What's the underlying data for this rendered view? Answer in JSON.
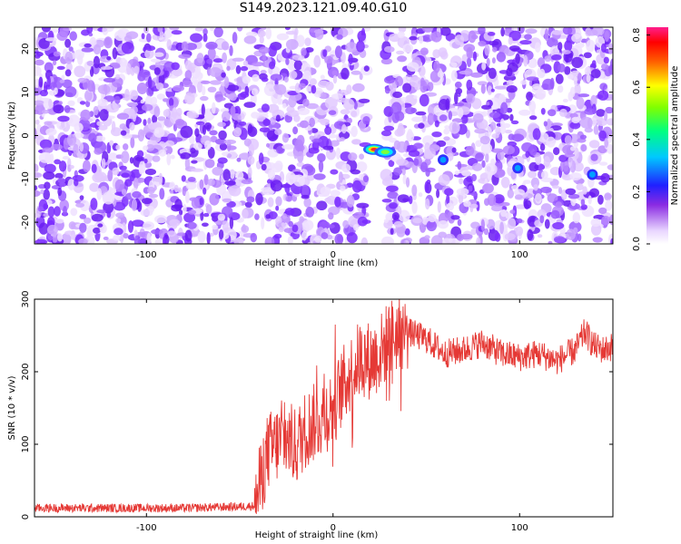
{
  "title": "S149.2023.121.09.40.G10",
  "chart_data": [
    {
      "type": "heatmap",
      "title": "S149.2023.121.09.40.G10",
      "xlabel": "Height of straight line (km)",
      "ylabel": "Frequency (Hz)",
      "xlim": [
        -160,
        150
      ],
      "ylim": [
        -25,
        25
      ],
      "x_ticks": [
        "-100",
        "0",
        "100"
      ],
      "x_tick_values": [
        -100,
        0,
        100
      ],
      "y_ticks": [
        "-20",
        "-10",
        "0",
        "10",
        "20"
      ],
      "y_tick_values": [
        -20,
        -10,
        0,
        10,
        20
      ],
      "gap_range_km": [
        18,
        28
      ],
      "peaks": [
        {
          "x": 22,
          "y": -3.2,
          "value": 0.82
        },
        {
          "x": 28,
          "y": -3.8,
          "value": 0.45
        },
        {
          "x": 59,
          "y": -5.6,
          "value": 0.22
        },
        {
          "x": 99,
          "y": -7.5,
          "value": 0.2
        },
        {
          "x": 139,
          "y": -9,
          "value": 0.14
        }
      ],
      "colorbar": {
        "label": "Normalized spectral amplitude",
        "range": [
          0,
          0.83
        ],
        "ticks": [
          "0.0",
          "0.2",
          "0.4",
          "0.6",
          "0.8"
        ],
        "tick_values": [
          0,
          0.2,
          0.4,
          0.6,
          0.8
        ]
      },
      "grid": false
    },
    {
      "type": "line",
      "xlabel": "Height of straight line (km)",
      "ylabel": "SNR (10 * v/v)",
      "xlim": [
        -160,
        150
      ],
      "ylim": [
        0,
        300
      ],
      "x_ticks": [
        "-100",
        "0",
        "100"
      ],
      "x_tick_values": [
        -100,
        0,
        100
      ],
      "y_ticks": [
        "0",
        "100",
        "200",
        "300"
      ],
      "y_tick_values": [
        0,
        100,
        200,
        300
      ],
      "series": [
        {
          "color": "#e53935",
          "x": [
            -160,
            -120,
            -80,
            -50,
            -42,
            -35,
            -30,
            -25,
            -20,
            -15,
            -10,
            -5,
            0,
            5,
            10,
            15,
            20,
            25,
            30,
            35,
            40,
            45,
            50,
            60,
            70,
            80,
            90,
            100,
            110,
            120,
            130,
            135,
            140,
            145,
            150
          ],
          "y": [
            12,
            12,
            12,
            14,
            15,
            90,
            100,
            110,
            95,
            120,
            130,
            140,
            150,
            180,
            200,
            220,
            215,
            225,
            245,
            255,
            255,
            250,
            245,
            225,
            230,
            240,
            225,
            220,
            225,
            215,
            230,
            255,
            235,
            230,
            235
          ]
        }
      ],
      "grid": false
    }
  ]
}
